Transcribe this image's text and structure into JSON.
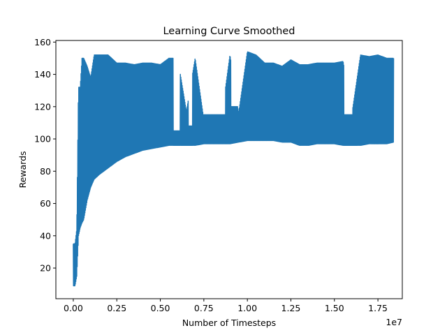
{
  "chart_data": {
    "type": "line",
    "title": "Learning Curve Smoothed",
    "xlabel": "Number of Timesteps",
    "ylabel": "Rewards",
    "x_offset_label": "1e7",
    "x_scale": 10000000,
    "xlim": [
      -0.1,
      1.89
    ],
    "ylim": [
      1,
      161
    ],
    "x_ticks": [
      0.0,
      0.25,
      0.5,
      0.75,
      1.0,
      1.25,
      1.5,
      1.75
    ],
    "x_tick_labels": [
      "0.00",
      "0.25",
      "0.50",
      "0.75",
      "1.00",
      "1.25",
      "1.50",
      "1.75"
    ],
    "y_ticks": [
      20,
      40,
      60,
      80,
      100,
      120,
      140,
      160
    ],
    "y_tick_labels": [
      "20",
      "40",
      "60",
      "80",
      "100",
      "120",
      "140",
      "160"
    ],
    "grid": false,
    "color": "#1f77b4",
    "series": [
      {
        "name": "",
        "envelope": {
          "x": [
            0.0,
            0.01,
            0.02,
            0.03,
            0.04,
            0.05,
            0.06,
            0.08,
            0.1,
            0.12,
            0.15,
            0.2,
            0.25,
            0.3,
            0.35,
            0.4,
            0.45,
            0.5,
            0.55,
            0.6,
            0.65,
            0.7,
            0.75,
            0.8,
            0.85,
            0.9,
            0.95,
            1.0,
            1.05,
            1.1,
            1.15,
            1.2,
            1.25,
            1.3,
            1.35,
            1.4,
            1.45,
            1.5,
            1.55,
            1.6,
            1.65,
            1.7,
            1.75,
            1.8,
            1.84
          ],
          "lower": [
            9,
            9,
            15,
            40,
            45,
            48,
            50,
            62,
            70,
            75,
            78,
            82,
            86,
            89,
            91,
            93,
            94,
            95,
            96,
            96,
            96,
            96,
            97,
            97,
            97,
            97,
            98,
            99,
            99,
            99,
            99,
            98,
            98,
            96,
            96,
            97,
            97,
            97,
            96,
            96,
            96,
            97,
            97,
            97,
            98
          ],
          "upper": [
            35,
            35,
            44,
            132,
            132,
            150,
            150,
            145,
            138,
            152,
            152,
            152,
            147,
            147,
            146,
            147,
            147,
            146,
            150,
            150,
            117,
            150,
            112,
            112,
            112,
            152,
            116,
            154,
            152,
            147,
            147,
            145,
            149,
            146,
            146,
            147,
            147,
            147,
            148,
            115,
            152,
            151,
            152,
            150,
            150
          ]
        }
      }
    ],
    "gaps": [
      {
        "x": [
          0.575,
          0.615
        ],
        "upper": 105
      },
      {
        "x": [
          0.66,
          0.685
        ],
        "upper": 108
      },
      {
        "x": [
          0.745,
          0.875
        ],
        "upper": 115
      },
      {
        "x": [
          0.905,
          0.945
        ],
        "upper": 120
      },
      {
        "x": [
          1.555,
          1.605
        ],
        "upper": 115
      }
    ]
  }
}
